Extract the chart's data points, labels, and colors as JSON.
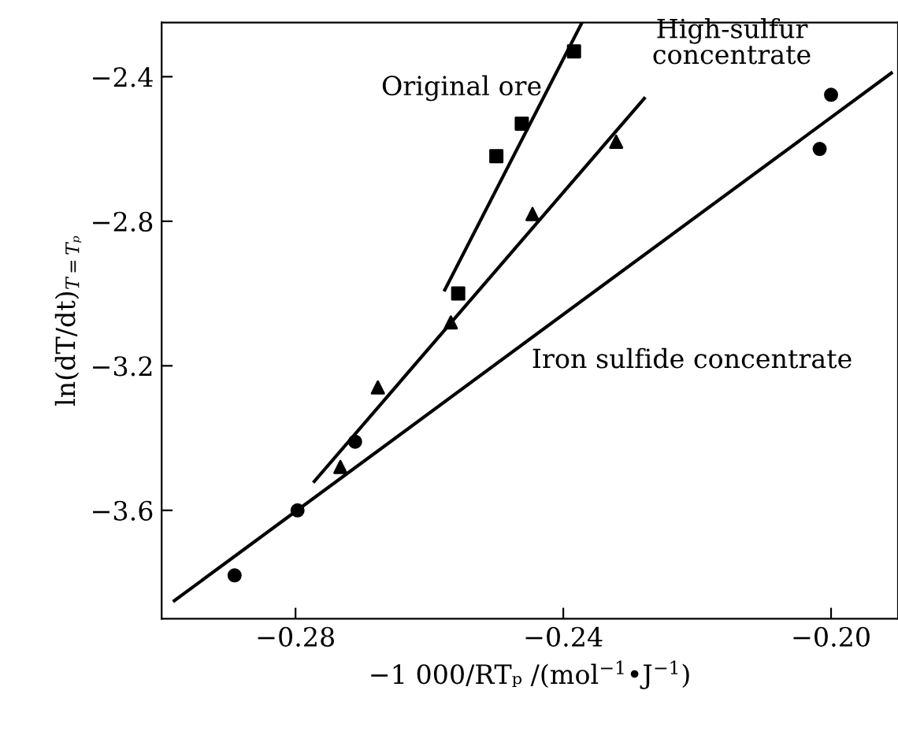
{
  "chart_data": {
    "type": "scatter",
    "xlabel": "−1 000/RTₚ /(mol$^{−1}$•J$^{−1}$)",
    "ylabel": "ln(dT/dt)$_{T=Tₚ}$",
    "series": [
      {
        "marker": "square",
        "color": "#000000",
        "x": [
          -0.2384,
          -0.2462,
          -0.25,
          -0.2557
        ],
        "values": [
          -2.33,
          -2.53,
          -2.62,
          -3.0
        ]
      },
      {
        "marker": "triangle",
        "color": "#000000",
        "x": [
          -0.2321,
          -0.2446,
          -0.2568,
          -0.2677,
          -0.2733
        ],
        "values": [
          -2.58,
          -2.78,
          -3.08,
          -3.26,
          -3.48
        ]
      },
      {
        "marker": "circle",
        "color": "#000000",
        "x": [
          -0.2,
          -0.2017,
          -0.2711,
          -0.2797,
          -0.2891
        ],
        "values": [
          -2.45,
          -2.6,
          -3.41,
          -3.6,
          -3.78
        ]
      },
      {
        "type": "line",
        "name": "Original ore",
        "marker": "none",
        "line_style": "solid",
        "color": "#000000",
        "x": [
          -0.2577,
          -0.2372
        ],
        "values": [
          -2.99,
          -2.25
        ]
      },
      {
        "type": "line",
        "name": "High-sulfur\nconcentrate",
        "marker": "none",
        "line_style": "solid",
        "color": "#000000",
        "x": [
          -0.2772,
          -0.2279
        ],
        "values": [
          -3.52,
          -2.46
        ]
      },
      {
        "type": "line",
        "name": "Iron sulfide concentrate",
        "marker": "none",
        "line_style": "solid",
        "color": "#000000",
        "x": [
          -0.2981,
          -0.191
        ],
        "values": [
          -3.85,
          -2.39
        ]
      }
    ],
    "xlim": [
      -0.3,
      -0.19
    ],
    "ylim": [
      -3.9,
      -2.25
    ],
    "xticks": [
      {
        "value": -0.28,
        "label": "−0.28"
      },
      {
        "value": -0.24,
        "label": "−0.24"
      },
      {
        "value": -0.2,
        "label": "−0.20"
      }
    ],
    "yticks": [
      {
        "value": -2.4,
        "label": "−2.4"
      },
      {
        "value": -2.8,
        "label": "−2.8"
      },
      {
        "value": -3.2,
        "label": "−3.2"
      },
      {
        "value": -3.6,
        "label": "−3.6"
      }
    ],
    "grid": false,
    "legend": false
  }
}
